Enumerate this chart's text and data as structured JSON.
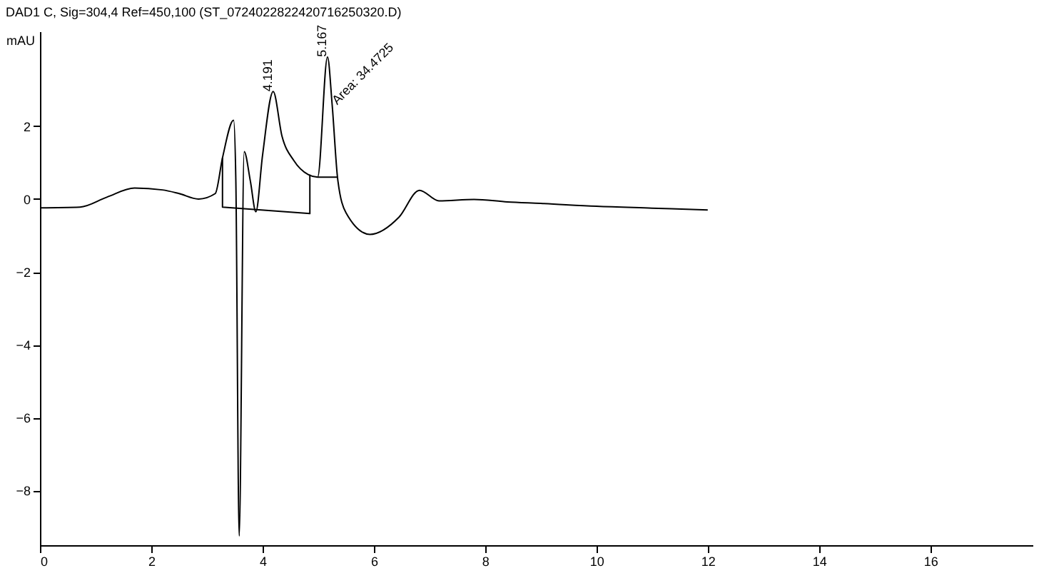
{
  "chart_data": {
    "type": "line",
    "title": "DAD1 C, Sig=304,4 Ref=450,100 (ST_0724022822420716250320.D)",
    "ylabel": "mAU",
    "xlim": [
      0,
      17.85
    ],
    "xticks": [
      0,
      2,
      4,
      6,
      8,
      10,
      12,
      14,
      16
    ],
    "ylim": [
      -9.5,
      4.6
    ],
    "yticks": [
      -8,
      -6,
      -4,
      -2,
      0,
      2
    ],
    "grid": false,
    "series": [
      {
        "color": "#000000",
        "x": [
          0,
          0.72,
          1.2,
          1.7,
          2.2,
          2.5,
          2.85,
          3.15,
          3.28,
          3.48,
          3.52,
          3.58,
          3.67,
          3.78,
          3.88,
          4.0,
          4.191,
          4.35,
          4.56,
          4.82,
          4.99,
          5.167,
          5.25,
          5.35,
          5.5,
          5.93,
          6.45,
          6.82,
          7.17,
          7.8,
          8.4,
          9.0,
          10.0,
          11.0,
          12.0
        ],
        "values": [
          -0.24,
          -0.22,
          0.05,
          0.3,
          0.25,
          0.15,
          0.0,
          0.15,
          1.13,
          2.16,
          0.5,
          -9.25,
          1.3,
          0.5,
          -0.35,
          1.2,
          2.95,
          1.72,
          1.06,
          0.67,
          0.6,
          3.9,
          2.6,
          0.55,
          -0.38,
          -0.97,
          -0.5,
          0.24,
          -0.05,
          -0.01,
          -0.08,
          -0.12,
          -0.2,
          -0.25,
          -0.3
        ]
      },
      {
        "color": "#000000",
        "x": [
          3.28,
          3.28,
          4.85,
          4.85
        ],
        "values": [
          1.13,
          -0.22,
          -0.4,
          0.67
        ]
      },
      {
        "color": "#000000",
        "x": [
          4.99,
          5.35
        ],
        "values": [
          0.6,
          0.6
        ]
      }
    ],
    "annotations": [
      {
        "text": "4.191",
        "x": 4.191,
        "y": 2.95
      },
      {
        "text": "5.167",
        "x": 5.167,
        "y": 3.9
      },
      {
        "text": "Area: 34.4725",
        "x": 5.25,
        "y": 2.6
      }
    ]
  }
}
